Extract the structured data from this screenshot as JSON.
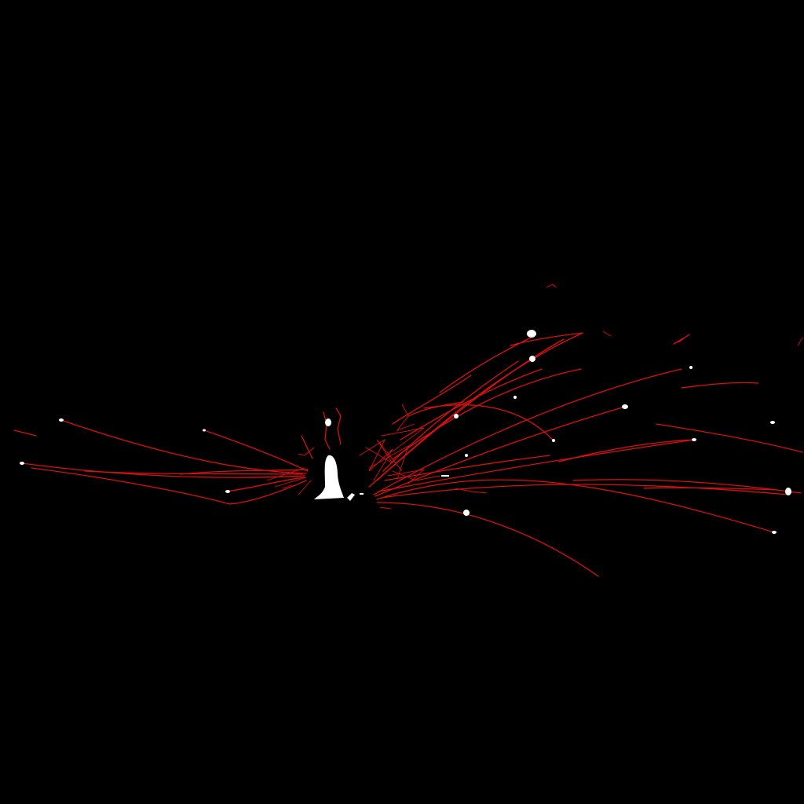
{
  "scene": {
    "kind": "particle-trails-visualization",
    "background_color": "#000000",
    "trail_color": "#d81010",
    "particle_color": "#ffffff"
  }
}
